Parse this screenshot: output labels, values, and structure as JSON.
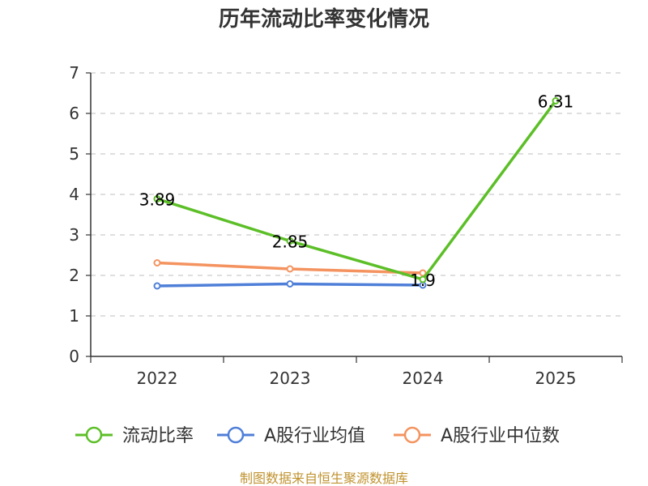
{
  "chart_data": {
    "type": "line",
    "title": "历年流动比率变化情况",
    "categories": [
      "2022",
      "2023",
      "2024",
      "2025"
    ],
    "y_ticks": [
      "0",
      "1",
      "2",
      "3",
      "4",
      "5",
      "6",
      "7"
    ],
    "ylim": [
      0,
      7
    ],
    "grid": true,
    "legend_position": "bottom",
    "series": [
      {
        "name": "流动比率",
        "values": [
          3.89,
          2.85,
          1.9,
          6.31
        ],
        "labels": [
          "3.89",
          "2.85",
          "1.9",
          "6.31"
        ],
        "color": "#5cbf27"
      },
      {
        "name": "A股行业均值",
        "values": [
          1.74,
          1.79,
          1.76,
          null
        ],
        "color": "#4f7fd8"
      },
      {
        "name": "A股行业中位数",
        "values": [
          2.31,
          2.16,
          2.06,
          null
        ],
        "color": "#f4935f"
      }
    ],
    "source": "制图数据来自恒生聚源数据库"
  }
}
